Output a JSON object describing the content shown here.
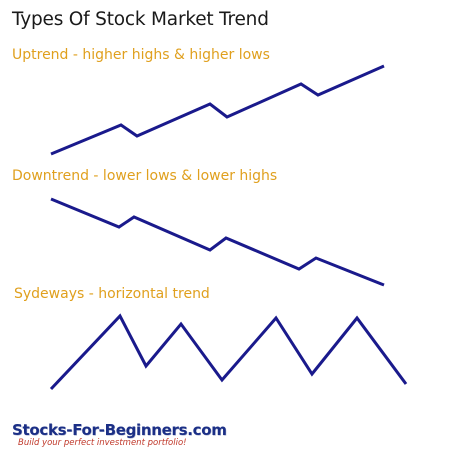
{
  "title": "Types Of Stock Market Trend",
  "captions": {
    "uptrend": "Uptrend - higher highs & higher lows",
    "downtrend": "Downtrend - lower lows & lower highs",
    "sideways": "Sydeways - horizontal trend"
  },
  "logo": {
    "name": "Stocks-For-Beginners.com",
    "tagline": "Build your perfect investment portfolio!"
  },
  "colors": {
    "line": "#1a1a8c",
    "caption": "#e0a01e",
    "title": "#1a1a1a"
  }
}
